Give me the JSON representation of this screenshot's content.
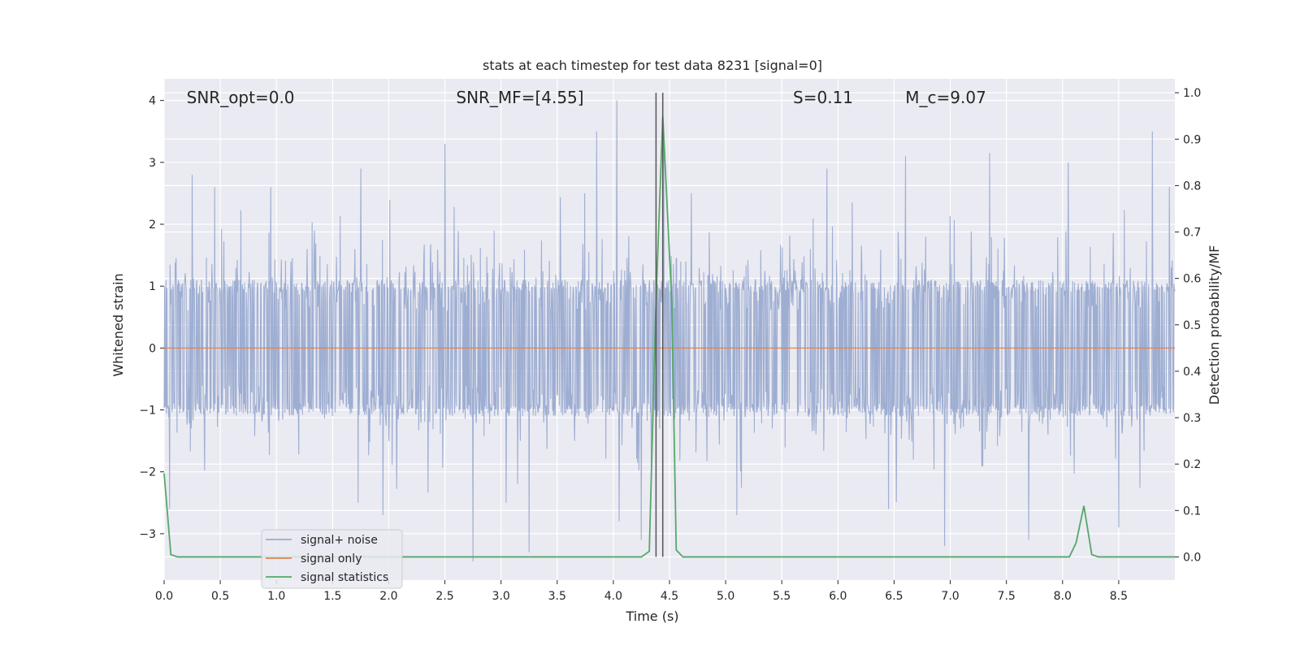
{
  "chart_data": {
    "type": "line",
    "title": "stats at each timestep for test data 8231 [signal=0]",
    "xlabel": "Time (s)",
    "ylabel_left": "Whitened strain",
    "ylabel_right": "Detection probability/MF",
    "xlim": [
      0.0,
      9.0
    ],
    "ylim_left": [
      -3.75,
      4.35
    ],
    "ylim_right": [
      -0.05,
      1.03
    ],
    "x_ticks": [
      0.0,
      0.5,
      1.0,
      1.5,
      2.0,
      2.5,
      3.0,
      3.5,
      4.0,
      4.5,
      5.0,
      5.5,
      6.0,
      6.5,
      7.0,
      7.5,
      8.0,
      8.5
    ],
    "x_tick_labels": [
      "0.0",
      "0.5",
      "1.0",
      "1.5",
      "2.0",
      "2.5",
      "3.0",
      "3.5",
      "4.0",
      "4.5",
      "5.0",
      "5.5",
      "6.0",
      "6.5",
      "7.0",
      "7.5",
      "8.0",
      "8.5"
    ],
    "y_left_ticks": [
      4,
      3,
      2,
      1,
      0,
      -1,
      -2,
      -3
    ],
    "y_left_tick_labels": [
      "4",
      "3",
      "2",
      "1",
      "0",
      "−1",
      "−2",
      "−3"
    ],
    "y_right_ticks": [
      1.0,
      0.9,
      0.8,
      0.7,
      0.6,
      0.5,
      0.4,
      0.3,
      0.2,
      0.1,
      0.0
    ],
    "y_right_tick_labels": [
      "1.0",
      "0.9",
      "0.8",
      "0.7",
      "0.6",
      "0.5",
      "0.4",
      "0.3",
      "0.2",
      "0.1",
      "0.0"
    ],
    "grid": true,
    "legend_position": "lower-left",
    "annotations": [
      {
        "text": "SNR_opt=0.0",
        "x": 0.2,
        "y": 4.05
      },
      {
        "text": "SNR_MF=[4.55]",
        "x": 2.6,
        "y": 4.05
      },
      {
        "text": "S=0.11",
        "x": 5.6,
        "y": 4.05
      },
      {
        "text": "M_c=9.07",
        "x": 6.6,
        "y": 4.05
      }
    ],
    "vertical_lines": [
      4.38,
      4.44
    ],
    "series": [
      {
        "name": "signal+ noise",
        "axis": "left",
        "color": "#9aabd0",
        "kind": "noise",
        "x_range": [
          0.0,
          9.0
        ],
        "sample_count": 2200,
        "core_amplitude": 1.1,
        "peaks": [
          {
            "x": 0.05,
            "y": 2.5
          },
          {
            "x": 0.05,
            "y": -2.6
          },
          {
            "x": 0.25,
            "y": 2.8
          },
          {
            "x": 0.45,
            "y": 2.6
          },
          {
            "x": 0.95,
            "y": 2.6
          },
          {
            "x": 1.75,
            "y": 2.9
          },
          {
            "x": 1.95,
            "y": -2.7
          },
          {
            "x": 2.5,
            "y": 3.3
          },
          {
            "x": 2.75,
            "y": -3.45
          },
          {
            "x": 3.25,
            "y": -3.3
          },
          {
            "x": 3.85,
            "y": 3.5
          },
          {
            "x": 4.03,
            "y": 4.0
          },
          {
            "x": 4.05,
            "y": -2.8
          },
          {
            "x": 4.25,
            "y": -3.1
          },
          {
            "x": 4.45,
            "y": 3.3
          },
          {
            "x": 5.1,
            "y": -2.7
          },
          {
            "x": 5.9,
            "y": 2.9
          },
          {
            "x": 6.45,
            "y": -2.6
          },
          {
            "x": 6.6,
            "y": 3.1
          },
          {
            "x": 6.95,
            "y": -3.2
          },
          {
            "x": 7.35,
            "y": 3.15
          },
          {
            "x": 7.7,
            "y": -3.1
          },
          {
            "x": 8.05,
            "y": 3.0
          },
          {
            "x": 8.5,
            "y": -2.9
          },
          {
            "x": 8.8,
            "y": 3.5
          },
          {
            "x": 8.95,
            "y": 2.6
          }
        ]
      },
      {
        "name": "signal only",
        "axis": "left",
        "color": "#dd8452",
        "x": [
          0.0,
          9.0
        ],
        "y": [
          0.0,
          0.0
        ]
      },
      {
        "name": "signal statistics",
        "axis": "right",
        "color": "#55a868",
        "x": [
          0.0,
          0.06,
          0.12,
          0.2,
          0.5,
          1.0,
          1.5,
          2.0,
          2.5,
          3.0,
          3.5,
          4.0,
          4.25,
          4.32,
          4.38,
          4.44,
          4.52,
          4.56,
          4.62,
          5.0,
          6.0,
          7.0,
          8.0,
          8.06,
          8.12,
          8.19,
          8.26,
          8.32,
          8.5,
          9.0
        ],
        "y": [
          0.18,
          0.005,
          0.0,
          0.0,
          0.0,
          0.0,
          0.0,
          0.0,
          0.0,
          0.0,
          0.0,
          0.0,
          0.0,
          0.012,
          0.55,
          0.95,
          0.55,
          0.015,
          0.0,
          0.0,
          0.0,
          0.0,
          0.0,
          0.0,
          0.03,
          0.11,
          0.005,
          0.0,
          0.0,
          0.0
        ]
      }
    ]
  }
}
